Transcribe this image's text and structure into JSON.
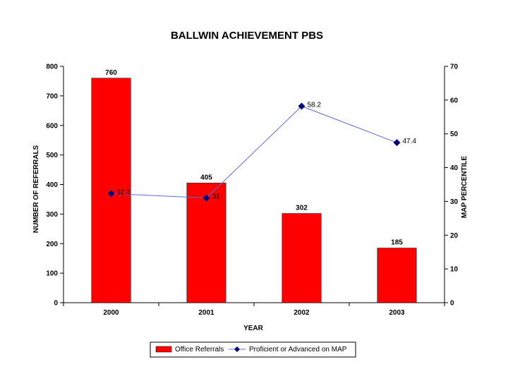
{
  "chart_data": {
    "type": "bar",
    "title": "BALLWIN ACHIEVEMENT PBS",
    "xlabel": "YEAR",
    "ylabel": "NUMBER OF REFERRALS",
    "y2label": "MAP PERCENTILE",
    "categories": [
      "2000",
      "2001",
      "2002",
      "2003"
    ],
    "ylim": [
      0,
      800
    ],
    "yticks": [
      "0",
      "100",
      "200",
      "300",
      "400",
      "500",
      "600",
      "700",
      "800"
    ],
    "y2lim": [
      0,
      70
    ],
    "y2ticks": [
      "0",
      "10",
      "20",
      "30",
      "40",
      "50",
      "60",
      "70"
    ],
    "grid": false,
    "legend_position": "bottom",
    "series": [
      {
        "name": "Office Referrals",
        "type": "bar",
        "axis": "left",
        "color": "#ff0000",
        "values": [
          760,
          405,
          302,
          185
        ],
        "labels": [
          "760",
          "405",
          "302",
          "185"
        ]
      },
      {
        "name": "Proficient or Advanced on MAP",
        "type": "line",
        "axis": "right",
        "color": "#000080",
        "line_color": "#5a6fd8",
        "marker": "diamond",
        "values": [
          32.3,
          31,
          58.2,
          47.4
        ],
        "labels": [
          "32.3",
          "31",
          "58.2",
          "47.4"
        ]
      }
    ]
  }
}
